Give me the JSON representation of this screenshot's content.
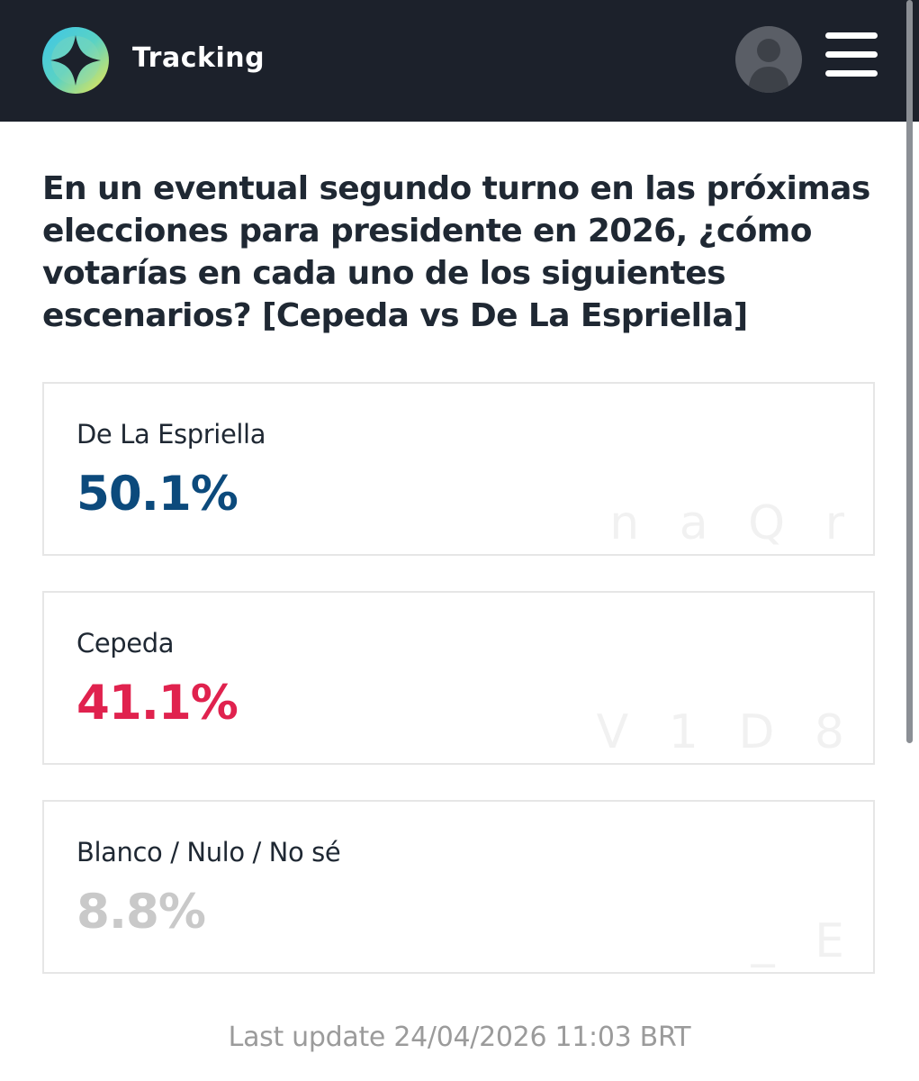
{
  "header": {
    "title": "Tracking",
    "logo_icon": "compass-logo-icon",
    "avatar_icon": "user-avatar-icon",
    "menu_icon": "hamburger-menu-icon",
    "background_color": "#1c212b"
  },
  "question": "En un eventual segundo turno en las próximas elecciones para presidente en 2026, ¿cómo votarías en cada uno de los siguientes escenarios? [Cepeda vs De La Espriella]",
  "results": [
    {
      "label": "De La Espriella",
      "value": "50.1%",
      "color": "#0c4a7c",
      "watermark": "n a Q r"
    },
    {
      "label": "Cepeda",
      "value": "41.1%",
      "color": "#e0224e",
      "watermark": "V 1 D 8"
    },
    {
      "label": "Blanco / Nulo / No sé",
      "value": "8.8%",
      "color": "#c9c9c9",
      "watermark": "_ E"
    }
  ],
  "footer": {
    "last_update": "Last update 24/04/2026 11:03 BRT"
  }
}
